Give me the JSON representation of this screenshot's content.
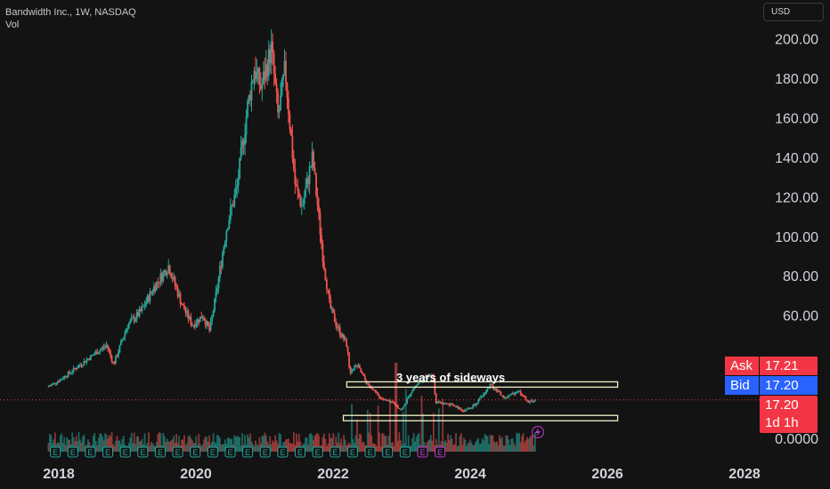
{
  "header": {
    "title": "Bandwidth Inc., 1W, NASDAQ",
    "subtitle": "Vol"
  },
  "currency_button": "USD",
  "quote": {
    "ask_label": "Ask",
    "ask_value": "17.21",
    "bid_label": "Bid",
    "bid_value": "17.20",
    "last_price": "17.20",
    "countdown": "1d 1h"
  },
  "colors": {
    "up": "#26a69a",
    "down": "#ef5350",
    "ask": "#f23645",
    "bid": "#2962ff",
    "background": "#131313",
    "box": "#f0f0c8"
  },
  "annotation": "3 years of sideways",
  "chart_data": {
    "type": "candlestick",
    "y_axis": {
      "ticks": [
        "200.00",
        "180.00",
        "160.00",
        "140.00",
        "120.00",
        "100.00",
        "80.00",
        "60.00"
      ],
      "values": [
        200,
        180,
        160,
        140,
        120,
        100,
        80,
        60
      ],
      "bottom_label": "0.0000"
    },
    "x_axis": {
      "ticks": [
        "2018",
        "2020",
        "2022",
        "2024",
        "2026",
        "2028"
      ],
      "values": [
        2018,
        2020,
        2022,
        2024,
        2026,
        2028
      ]
    },
    "ylim": [
      -7,
      210
    ],
    "price_path": [
      [
        2017.85,
        24
      ],
      [
        2018.0,
        27
      ],
      [
        2018.2,
        32
      ],
      [
        2018.5,
        40
      ],
      [
        2018.7,
        45
      ],
      [
        2018.8,
        35
      ],
      [
        2019.0,
        55
      ],
      [
        2019.2,
        62
      ],
      [
        2019.4,
        75
      ],
      [
        2019.6,
        85
      ],
      [
        2019.8,
        65
      ],
      [
        2019.95,
        55
      ],
      [
        2020.1,
        60
      ],
      [
        2020.2,
        52
      ],
      [
        2020.3,
        72
      ],
      [
        2020.45,
        105
      ],
      [
        2020.6,
        125
      ],
      [
        2020.75,
        165
      ],
      [
        2020.85,
        185
      ],
      [
        2020.95,
        175
      ],
      [
        2021.1,
        195
      ],
      [
        2021.2,
        160
      ],
      [
        2021.3,
        185
      ],
      [
        2021.45,
        125
      ],
      [
        2021.55,
        115
      ],
      [
        2021.7,
        140
      ],
      [
        2021.85,
        90
      ],
      [
        2021.95,
        65
      ],
      [
        2022.05,
        55
      ],
      [
        2022.2,
        45
      ],
      [
        2022.25,
        30
      ],
      [
        2022.35,
        35
      ],
      [
        2022.5,
        25
      ],
      [
        2022.7,
        18
      ],
      [
        2022.9,
        15
      ],
      [
        2023.0,
        12
      ],
      [
        2023.15,
        22
      ],
      [
        2023.3,
        28
      ],
      [
        2023.45,
        30
      ],
      [
        2023.5,
        16
      ],
      [
        2023.7,
        15
      ],
      [
        2023.9,
        12
      ],
      [
        2024.0,
        13
      ],
      [
        2024.15,
        18
      ],
      [
        2024.3,
        25
      ],
      [
        2024.5,
        18
      ],
      [
        2024.7,
        22
      ],
      [
        2024.85,
        16
      ],
      [
        2024.95,
        17.2
      ]
    ],
    "channel": [
      {
        "x0": 2022.2,
        "x1": 2026.15,
        "y": 25
      },
      {
        "x0": 2022.15,
        "x1": 2026.15,
        "y": 8
      }
    ],
    "markers": {
      "earnings_label": "E",
      "count": 23
    }
  }
}
